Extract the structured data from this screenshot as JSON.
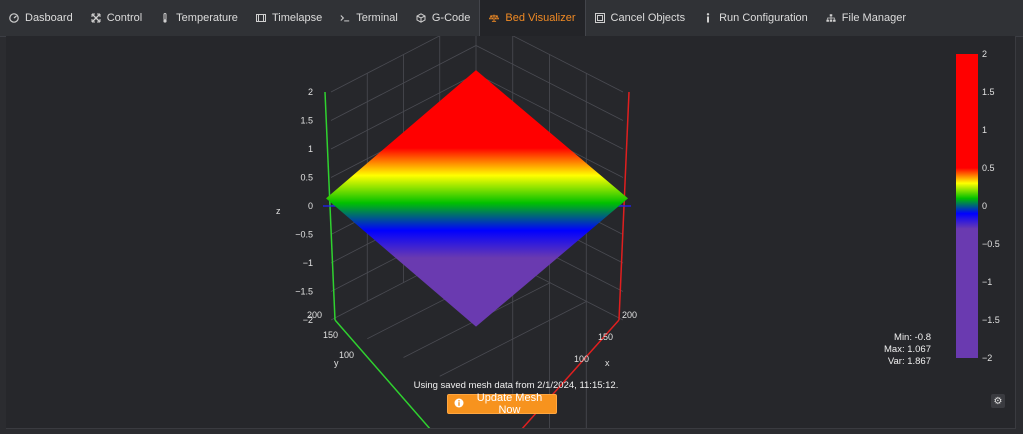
{
  "tabs": [
    {
      "label": "Dasboard",
      "icon": "dashboard-icon",
      "active": false
    },
    {
      "label": "Control",
      "icon": "control-icon",
      "active": false
    },
    {
      "label": "Temperature",
      "icon": "thermometer-icon",
      "active": false
    },
    {
      "label": "Timelapse",
      "icon": "film-icon",
      "active": false
    },
    {
      "label": "Terminal",
      "icon": "terminal-icon",
      "active": false
    },
    {
      "label": "G-Code",
      "icon": "cube-icon",
      "active": false
    },
    {
      "label": "Bed Visualizer",
      "icon": "balance-scale-icon",
      "active": true
    },
    {
      "label": "Cancel Objects",
      "icon": "cancel-objects-icon",
      "active": false
    },
    {
      "label": "Run Configuration",
      "icon": "info-icon",
      "active": false
    },
    {
      "label": "File Manager",
      "icon": "sitemap-icon",
      "active": false
    }
  ],
  "colors": {
    "accent": "#f7931e",
    "background": "#26272b"
  },
  "chart_data": {
    "type": "surface",
    "zlabel": "z",
    "xlabel": "x",
    "ylabel": "y",
    "z_range": [
      -2,
      2
    ],
    "z_ticks": [
      2,
      1.5,
      1,
      0.5,
      0,
      -0.5,
      -1,
      -1.5,
      -2
    ],
    "y_ticks": [
      200,
      150,
      100
    ],
    "x_ticks": [
      200,
      150,
      100
    ],
    "colorscale_ticks": [
      2,
      1.5,
      1,
      0.5,
      0,
      -0.5,
      -1,
      -1.5,
      -2
    ],
    "colorscale": [
      {
        "value": 2,
        "color": "#ff0000"
      },
      {
        "value": 0.5,
        "color": "#ff0000"
      },
      {
        "value": 0.3,
        "color": "#ffff00"
      },
      {
        "value": 0.1,
        "color": "#00c000"
      },
      {
        "value": -0.1,
        "color": "#0000ff"
      },
      {
        "value": -0.3,
        "color": "#6a3ab0"
      },
      {
        "value": -2,
        "color": "#6a3ab0"
      }
    ],
    "surface_corners": {
      "back": 1.067,
      "front": -0.8
    }
  },
  "stats": {
    "min": "Min: -0.8",
    "max": "Max: 1.067",
    "var": "Var: 1.867"
  },
  "saved_text": "Using saved mesh data from 2/1/2024, 11:15:12.",
  "update_button": "Update Mesh Now"
}
